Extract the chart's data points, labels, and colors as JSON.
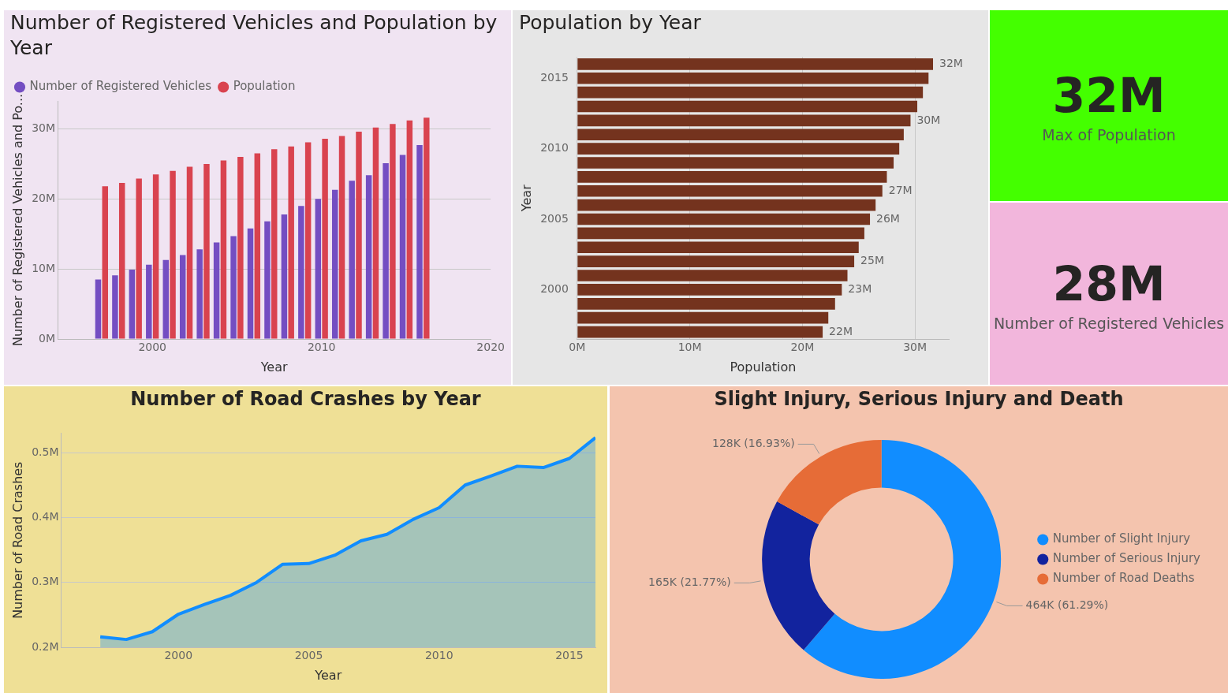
{
  "chart_data": [
    {
      "type": "bar",
      "title": "Number of Registered Vehicles and Population by Year",
      "xlabel": "Year",
      "ylabel": "Number of Registered Vehicles and Po...",
      "x": [
        1997,
        1998,
        1999,
        2000,
        2001,
        2002,
        2003,
        2004,
        2005,
        2006,
        2007,
        2008,
        2009,
        2010,
        2011,
        2012,
        2013,
        2014,
        2015,
        2016
      ],
      "series": [
        {
          "name": "Number of Registered Vehicles",
          "color": "#744ec2",
          "values": [
            8.5,
            9.1,
            9.9,
            10.6,
            11.3,
            12.0,
            12.8,
            13.8,
            14.7,
            15.8,
            16.8,
            17.8,
            19.0,
            20.0,
            21.3,
            22.6,
            23.4,
            25.1,
            26.3,
            27.7
          ]
        },
        {
          "name": "Population",
          "color": "#d9434f",
          "values": [
            21.8,
            22.3,
            22.9,
            23.5,
            24.0,
            24.6,
            25.0,
            25.5,
            26.0,
            26.5,
            27.1,
            27.5,
            28.1,
            28.6,
            29.0,
            29.6,
            30.2,
            30.7,
            31.2,
            31.6
          ]
        }
      ],
      "xlim": [
        1994.4,
        2020
      ],
      "xticks": [
        2000,
        2010,
        2020
      ],
      "ylim": [
        0,
        34
      ],
      "yticks": [
        {
          "value": 0,
          "label": "0M"
        },
        {
          "value": 10,
          "label": "10M"
        },
        {
          "value": 20,
          "label": "20M"
        },
        {
          "value": 30,
          "label": "30M"
        }
      ],
      "grid": "y",
      "legend": "top left"
    },
    {
      "type": "bar",
      "orientation": "horizontal",
      "title": "Population by Year",
      "xlabel": "Population",
      "ylabel": "Year",
      "categories": [
        null,
        "2015",
        null,
        null,
        null,
        null,
        "2010",
        null,
        null,
        null,
        null,
        "2005",
        null,
        null,
        null,
        null,
        "2000",
        null,
        null,
        null
      ],
      "values": [
        31.6,
        31.2,
        30.7,
        30.2,
        29.6,
        29.0,
        28.6,
        28.1,
        27.5,
        27.1,
        26.5,
        26.0,
        25.5,
        25.0,
        24.6,
        24.0,
        23.5,
        22.9,
        22.3,
        21.8
      ],
      "value_labels": [
        "32M",
        null,
        null,
        null,
        "30M",
        null,
        null,
        null,
        null,
        "27M",
        null,
        "26M",
        null,
        null,
        "25M",
        null,
        "23M",
        null,
        null,
        "22M"
      ],
      "color": "#74331e",
      "xlim": [
        0,
        33
      ],
      "xticks": [
        {
          "value": 0,
          "label": "0M"
        },
        {
          "value": 10,
          "label": "10M"
        },
        {
          "value": 20,
          "label": "20M"
        },
        {
          "value": 30,
          "label": "30M"
        }
      ],
      "grid": "x"
    },
    {
      "type": "other",
      "annotations": [
        "32M",
        "Max of Population"
      ]
    },
    {
      "type": "other",
      "annotations": [
        "28M",
        "Number of Registered Vehicles"
      ]
    },
    {
      "type": "area",
      "title": "Number of Road Crashes by Year",
      "xlabel": "Year",
      "ylabel": "Number of Road Crashes",
      "x": [
        1997,
        1998,
        1999,
        2000,
        2001,
        2002,
        2003,
        2004,
        2005,
        2006,
        2007,
        2008,
        2009,
        2010,
        2011,
        2012,
        2013,
        2014,
        2015,
        2016
      ],
      "series": [
        {
          "color": "#118dff",
          "values": [
            0.216,
            0.212,
            0.224,
            0.251,
            0.266,
            0.28,
            0.3,
            0.328,
            0.329,
            0.342,
            0.364,
            0.374,
            0.397,
            0.415,
            0.45,
            0.464,
            0.479,
            0.477,
            0.491,
            0.523
          ]
        }
      ],
      "xlim": [
        1995.5,
        2016
      ],
      "xticks": [
        2000,
        2005,
        2010,
        2015
      ],
      "ylim": [
        0.2,
        0.53
      ],
      "yticks": [
        {
          "value": 0.2,
          "label": "0.2M"
        },
        {
          "value": 0.3,
          "label": "0.3M"
        },
        {
          "value": 0.4,
          "label": "0.4M"
        },
        {
          "value": 0.5,
          "label": "0.5M"
        }
      ],
      "grid": "y"
    },
    {
      "type": "donut",
      "title": "Slight Injury, Serious Injury and Death",
      "categories": [
        "Number of Slight Injury",
        "Number of Serious Injury",
        "Number of Road Deaths"
      ],
      "values": [
        61.29,
        21.77,
        16.93
      ],
      "colors": [
        "#118dff",
        "#12239e",
        "#e66c37"
      ],
      "value_labels": [
        "464K (61.29%)",
        "165K (21.77%)",
        "128K (16.93%)"
      ],
      "legend": "right"
    }
  ]
}
